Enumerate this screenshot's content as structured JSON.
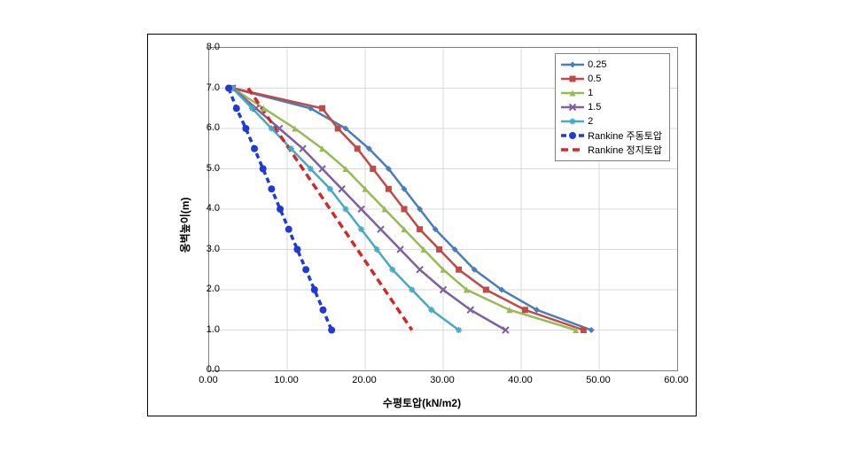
{
  "chart": {
    "type": "line",
    "background_color": "#ffffff",
    "border_color": "#000000",
    "grid_color": "#d9d9d9",
    "plot_border_color": "#7f7f7f",
    "x_axis": {
      "title": "수평토압(kN/m2)",
      "min": 0.0,
      "max": 60.0,
      "tick_step": 10.0,
      "ticks": [
        "0.00",
        "10.00",
        "20.00",
        "30.00",
        "40.00",
        "50.00",
        "60.00"
      ],
      "title_fontsize": 12,
      "tick_fontsize": 11
    },
    "y_axis": {
      "title": "옹벽높이(m)",
      "min": 0.0,
      "max": 8.0,
      "tick_step": 1.0,
      "ticks": [
        "0.0",
        "1.0",
        "2.0",
        "3.0",
        "4.0",
        "5.0",
        "6.0",
        "7.0",
        "8.0"
      ],
      "title_fontsize": 12,
      "tick_fontsize": 11
    },
    "series": [
      {
        "name": "0.25",
        "color": "#4a7ebb",
        "marker": "diamond",
        "marker_size": 7,
        "line_width": 2.5,
        "dash": "none",
        "points": [
          {
            "x": 3.0,
            "y": 7.0
          },
          {
            "x": 13.0,
            "y": 6.5
          },
          {
            "x": 17.5,
            "y": 6.0
          },
          {
            "x": 20.5,
            "y": 5.5
          },
          {
            "x": 23.0,
            "y": 5.0
          },
          {
            "x": 25.0,
            "y": 4.5
          },
          {
            "x": 27.0,
            "y": 4.0
          },
          {
            "x": 29.0,
            "y": 3.5
          },
          {
            "x": 31.5,
            "y": 3.0
          },
          {
            "x": 34.0,
            "y": 2.5
          },
          {
            "x": 37.5,
            "y": 2.0
          },
          {
            "x": 42.0,
            "y": 1.5
          },
          {
            "x": 49.0,
            "y": 1.0
          }
        ]
      },
      {
        "name": "0.5",
        "color": "#be4b48",
        "marker": "square",
        "marker_size": 7,
        "line_width": 2.5,
        "dash": "none",
        "points": [
          {
            "x": 3.0,
            "y": 7.0
          },
          {
            "x": 14.5,
            "y": 6.5
          },
          {
            "x": 16.5,
            "y": 6.0
          },
          {
            "x": 19.0,
            "y": 5.5
          },
          {
            "x": 21.0,
            "y": 5.0
          },
          {
            "x": 23.0,
            "y": 4.5
          },
          {
            "x": 25.0,
            "y": 4.0
          },
          {
            "x": 27.0,
            "y": 3.5
          },
          {
            "x": 29.5,
            "y": 3.0
          },
          {
            "x": 32.0,
            "y": 2.5
          },
          {
            "x": 35.5,
            "y": 2.0
          },
          {
            "x": 40.5,
            "y": 1.5
          },
          {
            "x": 48.0,
            "y": 1.0
          }
        ]
      },
      {
        "name": "1",
        "color": "#98b954",
        "marker": "triangle",
        "marker_size": 7,
        "line_width": 2.5,
        "dash": "none",
        "points": [
          {
            "x": 3.0,
            "y": 7.0
          },
          {
            "x": 7.0,
            "y": 6.5
          },
          {
            "x": 11.0,
            "y": 6.0
          },
          {
            "x": 14.5,
            "y": 5.5
          },
          {
            "x": 17.5,
            "y": 5.0
          },
          {
            "x": 20.0,
            "y": 4.5
          },
          {
            "x": 22.5,
            "y": 4.0
          },
          {
            "x": 25.0,
            "y": 3.5
          },
          {
            "x": 27.5,
            "y": 3.0
          },
          {
            "x": 30.0,
            "y": 2.5
          },
          {
            "x": 33.0,
            "y": 2.0
          },
          {
            "x": 38.5,
            "y": 1.5
          },
          {
            "x": 47.0,
            "y": 1.0
          }
        ]
      },
      {
        "name": "1.5",
        "color": "#7d60a0",
        "marker": "x",
        "marker_size": 7,
        "line_width": 2.5,
        "dash": "none",
        "points": [
          {
            "x": 3.0,
            "y": 7.0
          },
          {
            "x": 6.0,
            "y": 6.5
          },
          {
            "x": 9.0,
            "y": 6.0
          },
          {
            "x": 12.0,
            "y": 5.5
          },
          {
            "x": 14.5,
            "y": 5.0
          },
          {
            "x": 17.0,
            "y": 4.5
          },
          {
            "x": 19.5,
            "y": 4.0
          },
          {
            "x": 22.0,
            "y": 3.5
          },
          {
            "x": 24.5,
            "y": 3.0
          },
          {
            "x": 27.0,
            "y": 2.5
          },
          {
            "x": 30.0,
            "y": 2.0
          },
          {
            "x": 33.5,
            "y": 1.5
          },
          {
            "x": 38.0,
            "y": 1.0
          }
        ]
      },
      {
        "name": "2",
        "color": "#46aac5",
        "marker": "asterisk",
        "marker_size": 7,
        "line_width": 2.5,
        "dash": "none",
        "points": [
          {
            "x": 3.0,
            "y": 7.0
          },
          {
            "x": 5.5,
            "y": 6.5
          },
          {
            "x": 8.0,
            "y": 6.0
          },
          {
            "x": 10.5,
            "y": 5.5
          },
          {
            "x": 13.0,
            "y": 5.0
          },
          {
            "x": 15.5,
            "y": 4.5
          },
          {
            "x": 17.5,
            "y": 4.0
          },
          {
            "x": 19.5,
            "y": 3.5
          },
          {
            "x": 21.5,
            "y": 3.0
          },
          {
            "x": 23.5,
            "y": 2.5
          },
          {
            "x": 26.0,
            "y": 2.0
          },
          {
            "x": 28.5,
            "y": 1.5
          },
          {
            "x": 32.0,
            "y": 1.0
          }
        ]
      },
      {
        "name": "Rankine 주동토압",
        "color": "#1f3bd6",
        "marker": "circle",
        "marker_size": 8,
        "line_width": 3.5,
        "dash": "6,4",
        "points": [
          {
            "x": 2.5,
            "y": 7.0
          },
          {
            "x": 3.5,
            "y": 6.5
          },
          {
            "x": 4.7,
            "y": 6.0
          },
          {
            "x": 5.8,
            "y": 5.5
          },
          {
            "x": 6.9,
            "y": 5.0
          },
          {
            "x": 8.0,
            "y": 4.5
          },
          {
            "x": 9.1,
            "y": 4.0
          },
          {
            "x": 10.2,
            "y": 3.5
          },
          {
            "x": 11.3,
            "y": 3.0
          },
          {
            "x": 12.4,
            "y": 2.5
          },
          {
            "x": 13.5,
            "y": 2.0
          },
          {
            "x": 14.6,
            "y": 1.5
          },
          {
            "x": 15.7,
            "y": 1.0
          }
        ]
      },
      {
        "name": "Rankine 정지토압",
        "color": "#d62728",
        "marker": "none",
        "marker_size": 0,
        "line_width": 3.5,
        "dash": "8,5",
        "points": [
          {
            "x": 5.0,
            "y": 7.0
          },
          {
            "x": 26.0,
            "y": 1.0
          }
        ]
      }
    ]
  }
}
